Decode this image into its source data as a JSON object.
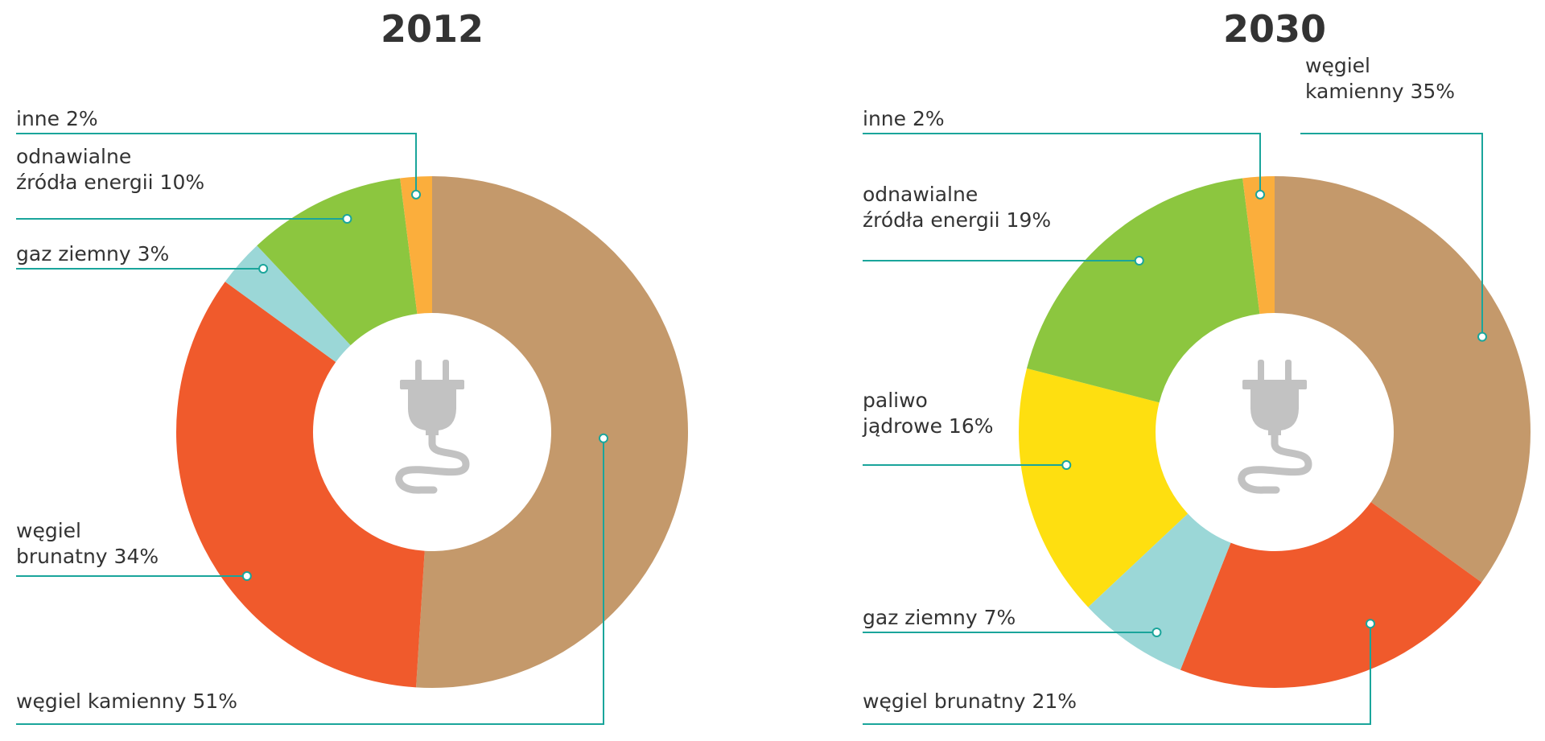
{
  "colors": {
    "wegiel_kamienny": "#c4996b",
    "wegiel_brunatny": "#f05a2c",
    "gaz_ziemny": "#9bd7d7",
    "odnawialne": "#8cc63f",
    "paliwo_jadrowe": "#fedf10",
    "inne": "#fbae3c",
    "leader": "#1aa59b",
    "center_icon": "#c2c2c2"
  },
  "center_icon": "plug-icon",
  "chart_data": [
    {
      "type": "pie",
      "variant": "donut",
      "title": "2012",
      "slices": [
        {
          "key": "wegiel_kamienny",
          "label_lines": [
            "węgiel kamienny 51%"
          ],
          "value": 51
        },
        {
          "key": "wegiel_brunatny",
          "label_lines": [
            "węgiel",
            "brunatny 34%"
          ],
          "value": 34
        },
        {
          "key": "gaz_ziemny",
          "label_lines": [
            "gaz ziemny 3%"
          ],
          "value": 3
        },
        {
          "key": "odnawialne",
          "label_lines": [
            "odnawialne",
            "źródła energii 10%"
          ],
          "value": 10
        },
        {
          "key": "inne",
          "label_lines": [
            "inne 2%"
          ],
          "value": 2
        }
      ]
    },
    {
      "type": "pie",
      "variant": "donut",
      "title": "2030",
      "slices": [
        {
          "key": "wegiel_kamienny",
          "label_lines": [
            "węgiel",
            "kamienny 35%"
          ],
          "value": 35
        },
        {
          "key": "wegiel_brunatny",
          "label_lines": [
            "węgiel brunatny 21%"
          ],
          "value": 21
        },
        {
          "key": "gaz_ziemny",
          "label_lines": [
            "gaz ziemny 7%"
          ],
          "value": 7
        },
        {
          "key": "paliwo_jadrowe",
          "label_lines": [
            "paliwo",
            "jądrowe 16%"
          ],
          "value": 16
        },
        {
          "key": "odnawialne",
          "label_lines": [
            "odnawialne",
            "źródła energii 19%"
          ],
          "value": 19
        },
        {
          "key": "inne",
          "label_lines": [
            "inne 2%"
          ],
          "value": 2
        }
      ]
    }
  ]
}
